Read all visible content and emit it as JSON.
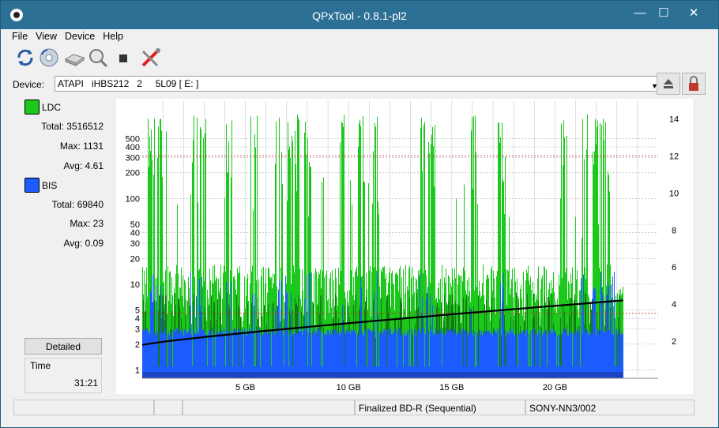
{
  "window": {
    "title": "QPxTool - 0.8.1-pl2",
    "minimize": "—",
    "maximize": "☐",
    "close": "✕"
  },
  "menu": [
    "File",
    "View",
    "Device",
    "Help"
  ],
  "toolbar": {
    "icons": [
      "refresh-icon",
      "disc-info-icon",
      "drive-icon",
      "scan-icon",
      "stop-icon",
      "settings-tools-icon"
    ]
  },
  "device": {
    "label": "Device:",
    "value": "ATAPI   iHBS212   2     5L09 [ E: ]"
  },
  "legend": {
    "ldc": {
      "name": "LDC",
      "color": "#1cc81c",
      "total": "Total: 3516512",
      "max": "Max: 1131",
      "avg": "Avg: 4.61"
    },
    "bis": {
      "name": "BIS",
      "color": "#1c5cff",
      "total": "Total: 69840",
      "max": "Max: 23",
      "avg": "Avg: 0.09"
    }
  },
  "detailed_label": "Detailed",
  "time": {
    "label": "Time",
    "value": "31:21"
  },
  "status": {
    "media": "Finalized BD-R (Sequential)",
    "disc_id": "SONY-NN3/002"
  },
  "chart_data": {
    "type": "area",
    "xlabel": "",
    "x_ticks": [
      "5 GB",
      "10 GB",
      "15 GB",
      "20 GB"
    ],
    "x_tick_values": [
      5,
      10,
      15,
      20
    ],
    "xlim": [
      0,
      25
    ],
    "data_end": 23.3,
    "y_left_scale": "log",
    "y_left_ticks": [
      "1",
      "2",
      "3",
      "4",
      "5",
      "10",
      "20",
      "30",
      "40",
      "50",
      "100",
      "200",
      "300",
      "400",
      "500"
    ],
    "y_left_values": [
      1,
      2,
      3,
      4,
      5,
      10,
      20,
      30,
      40,
      50,
      100,
      200,
      300,
      400,
      500
    ],
    "y_right_ticks": [
      "2",
      "4",
      "6",
      "8",
      "10",
      "12",
      "14"
    ],
    "y_right_values": [
      2,
      4,
      6,
      8,
      10,
      12,
      14
    ],
    "grid": true,
    "series": [
      {
        "name": "LDC",
        "color": "#1cc81c",
        "typical": 10,
        "peak": 1131
      },
      {
        "name": "BIS",
        "color": "#1c5cff",
        "typical": 3,
        "peak": 23
      },
      {
        "name": "Speed",
        "color": "#000000",
        "start": 1.8,
        "end": 4.2
      }
    ]
  }
}
